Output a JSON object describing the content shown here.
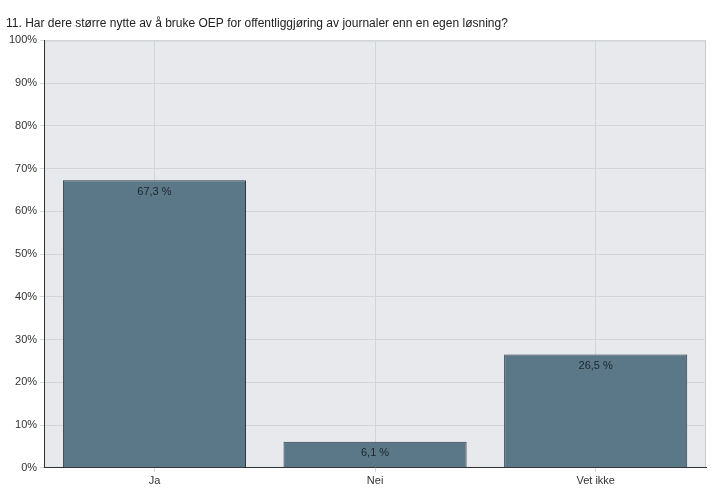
{
  "chart_data": {
    "type": "bar",
    "title": "11. Har dere større nytte av å bruke OEP for offentliggjøring av journaler enn en egen løsning?",
    "categories": [
      "Ja",
      "Nei",
      "Vet ikke"
    ],
    "values": [
      67.3,
      6.1,
      26.5
    ],
    "value_labels": [
      "67,3 %",
      "6,1 %",
      "26,5 %"
    ],
    "color": "#5b7888",
    "ylim": [
      0,
      100
    ],
    "yticks": [
      {
        "value": 0,
        "label": "0%"
      },
      {
        "value": 10,
        "label": "10%"
      },
      {
        "value": 20,
        "label": "20%"
      },
      {
        "value": 30,
        "label": "30%"
      },
      {
        "value": 40,
        "label": "40%"
      },
      {
        "value": 50,
        "label": "50%"
      },
      {
        "value": 60,
        "label": "60%"
      },
      {
        "value": 70,
        "label": "70%"
      },
      {
        "value": 80,
        "label": "80%"
      },
      {
        "value": 90,
        "label": "90%"
      },
      {
        "value": 100,
        "label": "100%"
      }
    ],
    "grid": true,
    "data_labels": true
  }
}
